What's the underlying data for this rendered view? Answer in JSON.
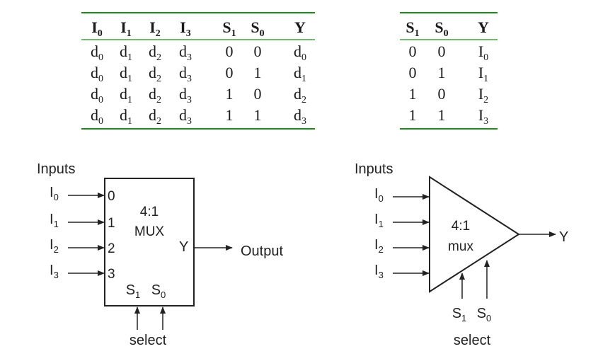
{
  "table_left": {
    "headers": [
      {
        "main": "I",
        "sub": "0"
      },
      {
        "main": "I",
        "sub": "1"
      },
      {
        "main": "I",
        "sub": "2"
      },
      {
        "main": "I",
        "sub": "3"
      },
      {
        "main": "S",
        "sub": "1"
      },
      {
        "main": "S",
        "sub": "0"
      },
      {
        "main": "Y",
        "sub": ""
      }
    ],
    "rows": [
      [
        {
          "main": "d",
          "sub": "0"
        },
        {
          "main": "d",
          "sub": "1"
        },
        {
          "main": "d",
          "sub": "2"
        },
        {
          "main": "d",
          "sub": "3"
        },
        {
          "main": "0",
          "sub": ""
        },
        {
          "main": "0",
          "sub": ""
        },
        {
          "main": "d",
          "sub": "0"
        }
      ],
      [
        {
          "main": "d",
          "sub": "0"
        },
        {
          "main": "d",
          "sub": "1"
        },
        {
          "main": "d",
          "sub": "2"
        },
        {
          "main": "d",
          "sub": "3"
        },
        {
          "main": "0",
          "sub": ""
        },
        {
          "main": "1",
          "sub": ""
        },
        {
          "main": "d",
          "sub": "1"
        }
      ],
      [
        {
          "main": "d",
          "sub": "0"
        },
        {
          "main": "d",
          "sub": "1"
        },
        {
          "main": "d",
          "sub": "2"
        },
        {
          "main": "d",
          "sub": "3"
        },
        {
          "main": "1",
          "sub": ""
        },
        {
          "main": "0",
          "sub": ""
        },
        {
          "main": "d",
          "sub": "2"
        }
      ],
      [
        {
          "main": "d",
          "sub": "0"
        },
        {
          "main": "d",
          "sub": "1"
        },
        {
          "main": "d",
          "sub": "2"
        },
        {
          "main": "d",
          "sub": "3"
        },
        {
          "main": "1",
          "sub": ""
        },
        {
          "main": "1",
          "sub": ""
        },
        {
          "main": "d",
          "sub": "3"
        }
      ]
    ]
  },
  "table_right": {
    "headers": [
      {
        "main": "S",
        "sub": "1"
      },
      {
        "main": "S",
        "sub": "0"
      },
      {
        "main": "Y",
        "sub": ""
      }
    ],
    "rows": [
      [
        {
          "main": "0",
          "sub": ""
        },
        {
          "main": "0",
          "sub": ""
        },
        {
          "main": "I",
          "sub": "0"
        }
      ],
      [
        {
          "main": "0",
          "sub": ""
        },
        {
          "main": "1",
          "sub": ""
        },
        {
          "main": "I",
          "sub": "1"
        }
      ],
      [
        {
          "main": "1",
          "sub": ""
        },
        {
          "main": "0",
          "sub": ""
        },
        {
          "main": "I",
          "sub": "2"
        }
      ],
      [
        {
          "main": "1",
          "sub": ""
        },
        {
          "main": "1",
          "sub": ""
        },
        {
          "main": "I",
          "sub": "3"
        }
      ]
    ]
  },
  "rule_color": "#1e8a1e",
  "mux_box": {
    "inputs_label": "Inputs",
    "inputs": [
      {
        "main": "I",
        "sub": "0",
        "pin": "0"
      },
      {
        "main": "I",
        "sub": "1",
        "pin": "1"
      },
      {
        "main": "I",
        "sub": "2",
        "pin": "2"
      },
      {
        "main": "I",
        "sub": "3",
        "pin": "3"
      }
    ],
    "title_line1": "4:1",
    "title_line2": "MUX",
    "y_label": "Y",
    "output_label": "Output",
    "selects": [
      {
        "main": "S",
        "sub": "1"
      },
      {
        "main": "S",
        "sub": "0"
      }
    ],
    "select_label": "select"
  },
  "mux_triangle": {
    "inputs_label": "Inputs",
    "inputs": [
      {
        "main": "I",
        "sub": "0"
      },
      {
        "main": "I",
        "sub": "1"
      },
      {
        "main": "I",
        "sub": "2"
      },
      {
        "main": "I",
        "sub": "3"
      }
    ],
    "title_line1": "4:1",
    "title_line2": "mux",
    "output_label": "Y",
    "selects": [
      {
        "main": "S",
        "sub": "1"
      },
      {
        "main": "S",
        "sub": "0"
      }
    ],
    "select_label": "select"
  }
}
